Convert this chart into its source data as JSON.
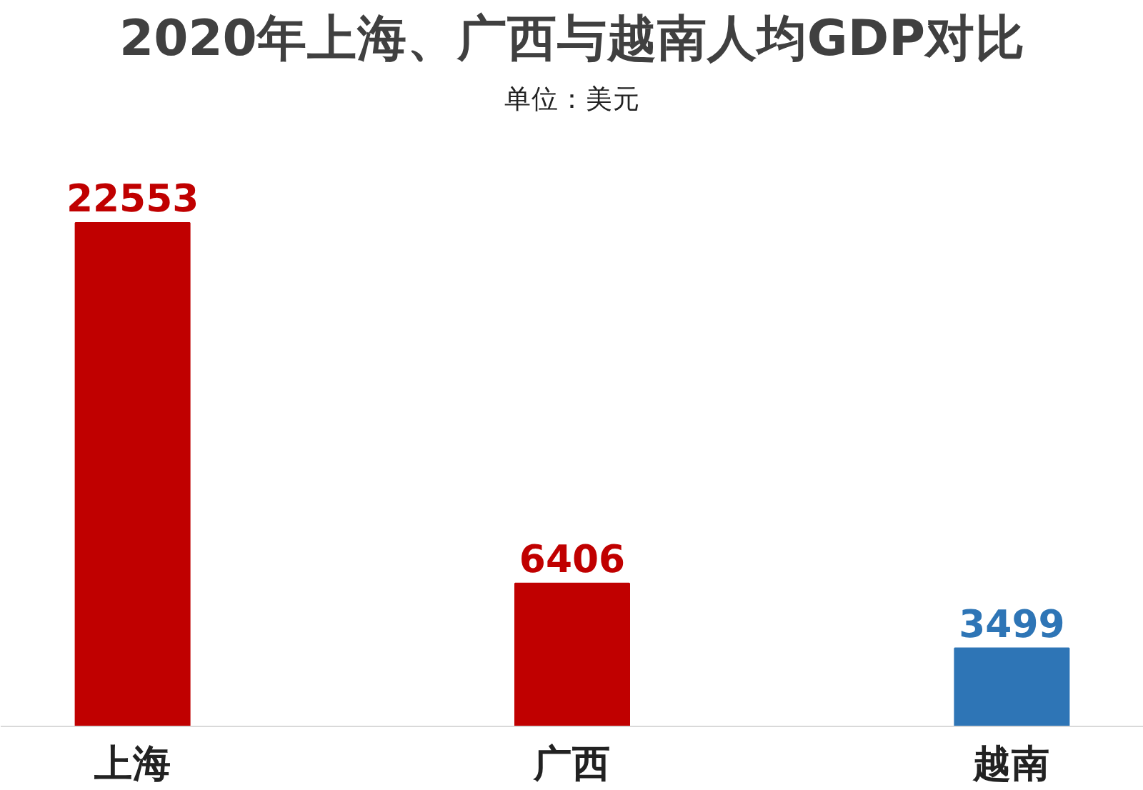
{
  "chart_data": {
    "type": "bar",
    "title": "2020年上海、广西与越南人均GDP对比",
    "subtitle": "单位：美元",
    "categories": [
      "上海",
      "广西",
      "越南"
    ],
    "values": [
      22553,
      6406,
      3499
    ],
    "colors": [
      "#c00000",
      "#c00000",
      "#2e75b6"
    ],
    "data_labels": true,
    "grid": false
  }
}
